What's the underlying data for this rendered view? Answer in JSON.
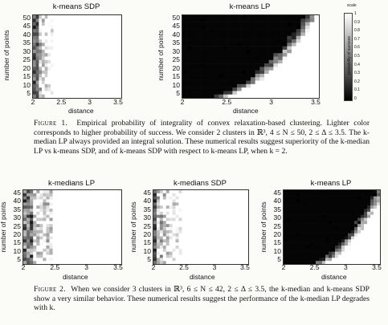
{
  "figure1": {
    "plots": [
      {
        "title": "k-means SDP",
        "xlabel": "distance",
        "ylabel": "number of points",
        "xticks": [
          "2",
          "2.5",
          "3",
          "3.5"
        ],
        "yticks": [
          "50",
          "45",
          "40",
          "35",
          "30",
          "25",
          "20",
          "15",
          "10",
          "5"
        ],
        "pattern": "sdp2"
      },
      {
        "title": "k-means LP",
        "xlabel": "distance",
        "ylabel": "number of points",
        "xticks": [
          "2",
          "2.5",
          "3",
          "3.5"
        ],
        "yticks": [
          "50",
          "45",
          "40",
          "35",
          "30",
          "25",
          "20",
          "15",
          "10",
          "5"
        ],
        "pattern": "lp2"
      }
    ],
    "colorbar": {
      "title": "scale",
      "label": "probability of success",
      "ticks": [
        "1",
        "0.9",
        "0.8",
        "0.7",
        "0.6",
        "0.5",
        "0.4",
        "0.3",
        "0.2",
        "0.1",
        "0"
      ]
    },
    "caption_label": "Figure 1.",
    "caption_text": "Empirical probability of integrality of convex relaxation-based clustering. Lighter color corresponds to higher probability of success. We consider 2 clusters in ℝ³, 4 ≤ N ≤ 50, 2 ≤ Δ ≤ 3.5. The k-median LP always provided an integral solution. These numerical results suggest superiority of the k-median LP vs k-means SDP, and of k-means SDP with respect to k-means LP, when k = 2."
  },
  "figure2": {
    "plots": [
      {
        "title": "k-medians LP",
        "xlabel": "distance",
        "ylabel": "number of points",
        "xticks": [
          "2",
          "2.5",
          "3",
          "3.5"
        ],
        "yticks": [
          "45",
          "40",
          "35",
          "30",
          "25",
          "20",
          "15",
          "10",
          "5"
        ],
        "pattern": "med3"
      },
      {
        "title": "k-medians SDP",
        "xlabel": "distance",
        "ylabel": "number of points",
        "xticks": [
          "2",
          "2.5",
          "3",
          "3.5"
        ],
        "yticks": [
          "45",
          "40",
          "35",
          "30",
          "25",
          "20",
          "15",
          "10",
          "5"
        ],
        "pattern": "sdp3"
      },
      {
        "title": "k-means LP",
        "xlabel": "distance",
        "ylabel": "number of points",
        "xticks": [
          "2",
          "2.5",
          "3",
          "3.5"
        ],
        "yticks": [
          "45",
          "40",
          "35",
          "30",
          "25",
          "20",
          "15",
          "10",
          "5"
        ],
        "pattern": "lp3"
      }
    ],
    "caption_label": "Figure 2.",
    "caption_text": "When we consider 3 clusters in ℝ³, 6 ≤ N ≤ 42, 2 ≤ Δ ≤ 3.5, the k-median and k-means SDP show a very similar behavior. These numerical results suggest the performance of the k-median LP degrades with k."
  }
}
